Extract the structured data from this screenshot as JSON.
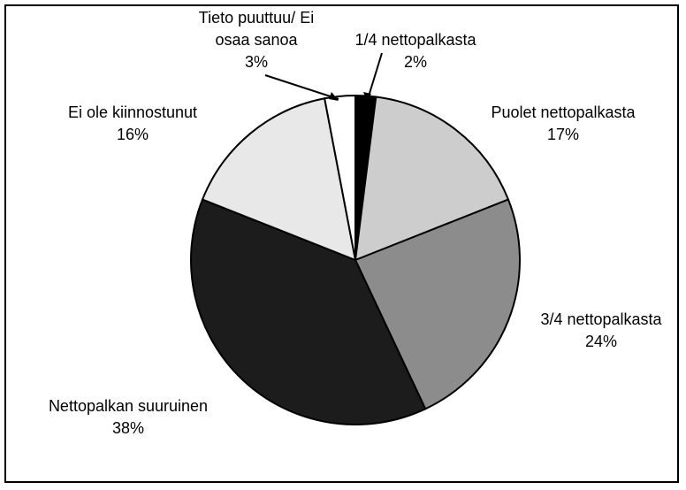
{
  "chart_data": {
    "type": "pie",
    "categories": [
      "1/4 nettopalkasta",
      "Puolet nettopalkasta",
      "3/4 nettopalkasta",
      "Nettopalkan suuruinen",
      "Ei ole kiinnostunut",
      "Tieto puuttuu/ Ei osaa sanoa"
    ],
    "values": [
      2,
      17,
      24,
      38,
      16,
      3
    ],
    "value_labels": [
      "2%",
      "17%",
      "24%",
      "38%",
      "16%",
      "3%"
    ],
    "colors": [
      "#000000",
      "#cdcdcd",
      "#8c8c8c",
      "#1c1c1c",
      "#e8e8e8",
      "#ffffff"
    ]
  }
}
